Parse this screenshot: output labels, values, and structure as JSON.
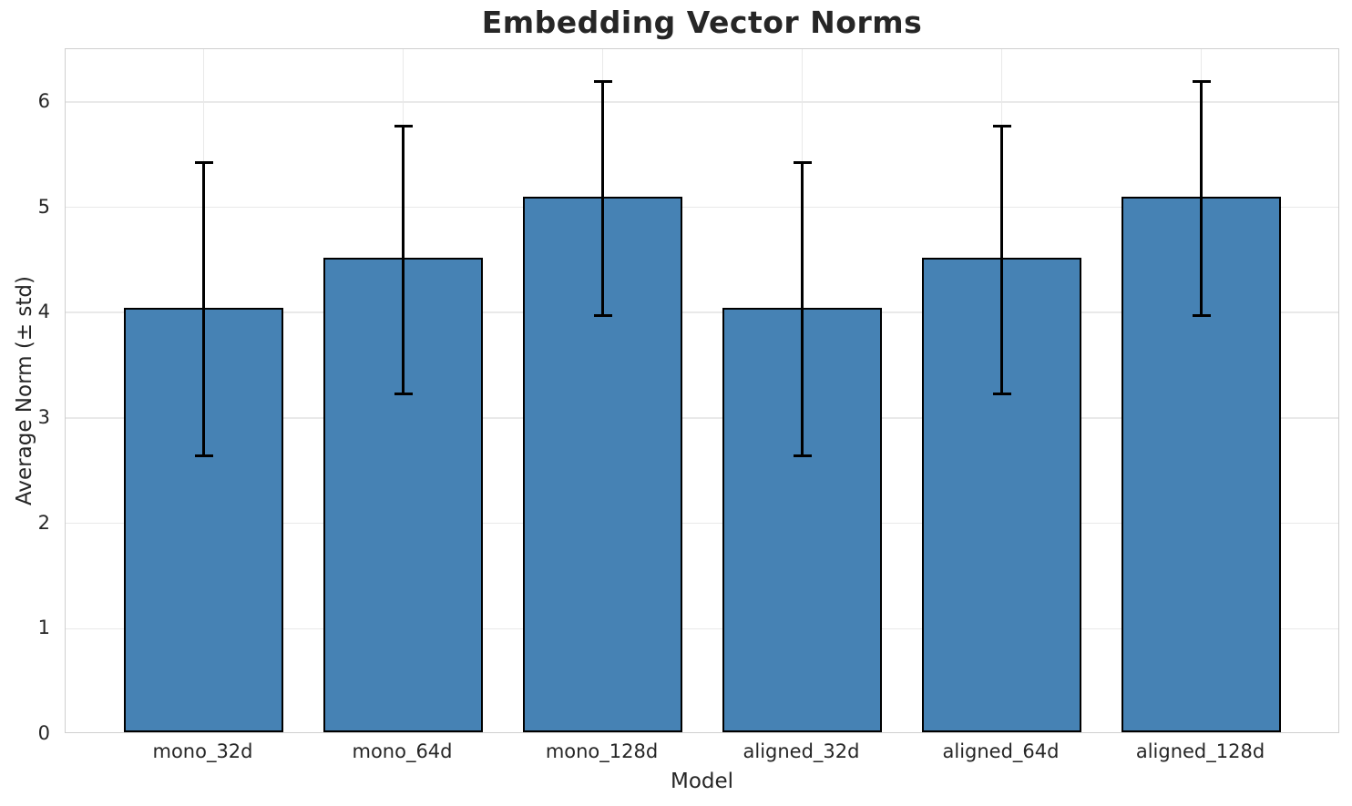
{
  "chart_data": {
    "type": "bar",
    "title": "Embedding Vector Norms",
    "xlabel": "Model",
    "ylabel": "Average Norm (± std)",
    "categories": [
      "mono_32d",
      "mono_64d",
      "mono_128d",
      "aligned_32d",
      "aligned_64d",
      "aligned_128d"
    ],
    "series": [
      {
        "name": "Average Norm (± std)",
        "values": [
          4.03,
          4.5,
          5.08,
          4.03,
          4.5,
          5.08
        ],
        "errors": [
          1.39,
          1.27,
          1.11,
          1.39,
          1.27,
          1.11
        ]
      }
    ],
    "error_whisker_tops": [
      5.42,
      5.77,
      6.19,
      5.42,
      5.77,
      6.19
    ],
    "error_whisker_bottoms": [
      2.64,
      3.23,
      3.97,
      2.64,
      3.23,
      3.97
    ],
    "ylim": [
      0,
      6.5
    ],
    "yticks": [
      0,
      1,
      2,
      3,
      4,
      5,
      6
    ],
    "grid": true,
    "legend_position": "none",
    "bar_color": "#4682b4",
    "bar_edge_color": "#000000",
    "error_color": "#000000",
    "grid_color": "#e9e9e9",
    "spine_color": "#cfcfcf",
    "text_color": "#262626"
  }
}
